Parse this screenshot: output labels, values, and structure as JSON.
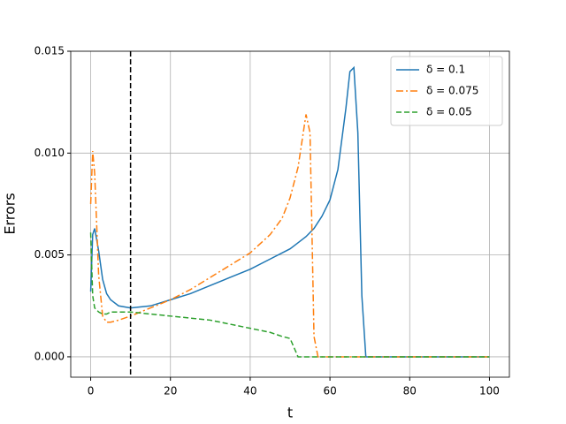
{
  "chart_data": {
    "type": "line",
    "xlabel": "t",
    "ylabel": "Errors",
    "x": [
      0,
      0.5,
      1,
      2,
      3,
      4,
      5,
      7,
      10,
      15,
      20,
      25,
      30,
      35,
      40,
      45,
      48,
      50,
      52,
      54,
      55,
      56,
      57,
      58,
      60,
      62,
      64,
      65,
      66,
      67,
      68,
      69,
      70,
      80,
      90,
      100
    ],
    "series": [
      {
        "name": "δ = 0.1",
        "color": "#1f77b4",
        "linestyle": "solid",
        "values": [
          0.0032,
          0.006,
          0.0063,
          0.0052,
          0.0038,
          0.0031,
          0.0028,
          0.0025,
          0.0024,
          0.0025,
          0.0028,
          0.0031,
          0.0035,
          0.0039,
          0.0043,
          0.0048,
          0.0051,
          0.0053,
          0.0056,
          0.0059,
          0.0061,
          0.0063,
          0.0066,
          0.0069,
          0.0077,
          0.0092,
          0.0122,
          0.014,
          0.0142,
          0.011,
          0.003,
          0,
          0,
          0,
          0,
          0
        ]
      },
      {
        "name": "δ = 0.075",
        "color": "#ff7f0e",
        "linestyle": "dashdot",
        "values": [
          0.0075,
          0.0101,
          0.009,
          0.004,
          0.002,
          0.0017,
          0.0017,
          0.0018,
          0.002,
          0.0024,
          0.0028,
          0.0033,
          0.0039,
          0.0045,
          0.0051,
          0.006,
          0.0068,
          0.0078,
          0.0093,
          0.0119,
          0.011,
          0.001,
          0,
          0,
          0,
          0,
          0,
          0,
          0,
          0,
          0,
          0,
          0,
          0,
          0,
          0
        ]
      },
      {
        "name": "δ = 0.05",
        "color": "#2ca02c",
        "linestyle": "dashed",
        "values": [
          0.0061,
          0.003,
          0.0024,
          0.0022,
          0.0021,
          0.0021,
          0.0022,
          0.0022,
          0.0022,
          0.0021,
          0.002,
          0.0019,
          0.0018,
          0.0016,
          0.0014,
          0.0012,
          0.001,
          0.0009,
          0,
          0,
          0,
          0,
          0,
          0,
          0,
          0,
          0,
          0,
          0,
          0,
          0,
          0,
          0,
          0,
          0,
          0
        ]
      }
    ],
    "vline": {
      "x": 10,
      "color": "#000000",
      "linestyle": "dashed"
    },
    "xlim": [
      -5,
      105
    ],
    "xticks": [
      0,
      20,
      40,
      60,
      80,
      100
    ],
    "ylim": [
      -0.001,
      0.015
    ],
    "yticks": [
      {
        "value": 0,
        "label": "0.000"
      },
      {
        "value": 0.005,
        "label": "0.005"
      },
      {
        "value": 0.01,
        "label": "0.010"
      },
      {
        "value": 0.015,
        "label": "0.015"
      }
    ],
    "grid": true,
    "legend": "upper right"
  }
}
